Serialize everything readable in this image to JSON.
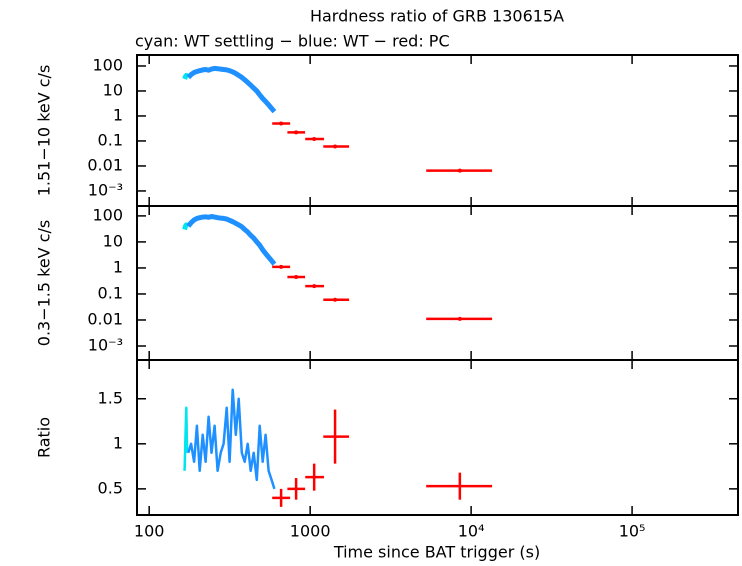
{
  "chart_data": {
    "type": "errorbar",
    "title": "Hardness ratio of GRB 130615A",
    "subtitle": "cyan: WT settling − blue: WT − red: PC",
    "x_label": "Time since BAT trigger (s)",
    "xlog": true,
    "xlim": [
      84,
      455000
    ],
    "xticks": [
      100,
      1000,
      {
        "value": 10000,
        "label": "10⁴"
      },
      {
        "value": 100000,
        "label": "10⁵"
      }
    ],
    "panels": [
      {
        "y_label": "1.51−10 keV c/s",
        "ylog": true,
        "ylim": [
          0.00025,
          275
        ],
        "yticks": [
          100,
          10,
          1,
          0.1,
          0.01,
          {
            "value": 0.001,
            "label": "10⁻³"
          }
        ],
        "series": [
          {
            "color": "#00e5ee",
            "x": [
              166,
              168,
              170,
              172
            ],
            "values": [
              30,
              38,
              42,
              35
            ]
          },
          {
            "color": "#1e90ff",
            "x": [
              175,
              182,
              190,
              198,
              206,
              215,
              224,
              234,
              244,
              255,
              266,
              278,
              290,
              303,
              316,
              330,
              345,
              360,
              376,
              392,
              409,
              427,
              446,
              466,
              486,
              507,
              529,
              552,
              576,
              600
            ],
            "values": [
              35,
              45,
              55,
              60,
              65,
              70,
              72,
              68,
              75,
              80,
              78,
              75,
              72,
              70,
              65,
              58,
              50,
              42,
              35,
              28,
              22,
              17,
              13,
              10,
              7,
              5,
              3.8,
              2.8,
              2,
              1.5
            ]
          },
          {
            "color": "#ff0000",
            "x": [
              660,
              818,
              1059,
              1428,
              8510
            ],
            "x_low": [
              581,
              722,
              932,
              1207,
              5260
            ],
            "x_high": [
              751,
              930,
              1220,
              1745,
              13500
            ],
            "values": [
              0.5,
              0.22,
              0.12,
              0.06,
              0.0065
            ]
          }
        ]
      },
      {
        "y_label": "0.3−1.5 keV c/s",
        "ylog": true,
        "ylim": [
          0.00029,
          240
        ],
        "yticks": [
          100,
          10,
          1,
          0.1,
          0.01,
          {
            "value": 0.001,
            "label": "10⁻³"
          }
        ],
        "series": [
          {
            "color": "#00e5ee",
            "x": [
              166,
              168,
              170,
              172
            ],
            "values": [
              30,
              40,
              45,
              38
            ]
          },
          {
            "color": "#1e90ff",
            "x": [
              175,
              182,
              190,
              198,
              206,
              215,
              224,
              234,
              244,
              255,
              266,
              278,
              290,
              303,
              316,
              330,
              345,
              360,
              376,
              392,
              409,
              427,
              446,
              466,
              486,
              507,
              529,
              552,
              576,
              600
            ],
            "values": [
              40,
              55,
              70,
              80,
              85,
              90,
              92,
              88,
              95,
              90,
              85,
              82,
              80,
              75,
              68,
              60,
              52,
              45,
              38,
              30,
              24,
              18,
              14,
              10,
              7.5,
              5,
              3.6,
              2.6,
              1.9,
              1.4
            ]
          },
          {
            "color": "#ff0000",
            "x": [
              660,
              818,
              1059,
              1428,
              8510
            ],
            "x_low": [
              581,
              722,
              932,
              1207,
              5260
            ],
            "x_high": [
              751,
              930,
              1220,
              1745,
              13500
            ],
            "values": [
              1.1,
              0.45,
              0.2,
              0.06,
              0.011
            ]
          }
        ]
      },
      {
        "y_label": "Ratio",
        "ylog": false,
        "ylim": [
          0.21,
          1.93
        ],
        "yticks": [
          0.5,
          1,
          1.5
        ],
        "series": [
          {
            "color": "#00e5ee",
            "x": [
              166,
              168,
              170,
              172
            ],
            "values": [
              0.7,
              1.1,
              1.4,
              0.9
            ]
          },
          {
            "color": "#1e90ff",
            "x": [
              175,
              182,
              190,
              198,
              206,
              215,
              224,
              234,
              244,
              255,
              266,
              278,
              290,
              303,
              316,
              330,
              345,
              360,
              376,
              392,
              409,
              427,
              446,
              466,
              486,
              507,
              529,
              552,
              576,
              600
            ],
            "values": [
              0.9,
              1.0,
              0.8,
              1.2,
              0.7,
              1.1,
              0.8,
              1.3,
              0.9,
              1.2,
              0.7,
              0.9,
              1.0,
              1.4,
              0.8,
              1.6,
              1.1,
              1.5,
              0.9,
              0.8,
              1.0,
              0.7,
              0.9,
              0.6,
              1.2,
              0.8,
              1.1,
              0.7,
              0.6,
              0.5
            ]
          },
          {
            "color": "#ff0000",
            "x": [
              660,
              818,
              1059,
              1428,
              8510
            ],
            "x_low": [
              581,
              722,
              932,
              1207,
              5260
            ],
            "x_high": [
              751,
              930,
              1220,
              1745,
              13500
            ],
            "values": [
              0.4,
              0.5,
              0.63,
              1.08,
              0.53
            ],
            "errors": [
              0.1,
              0.12,
              0.15,
              0.3,
              0.15
            ]
          }
        ]
      }
    ]
  }
}
